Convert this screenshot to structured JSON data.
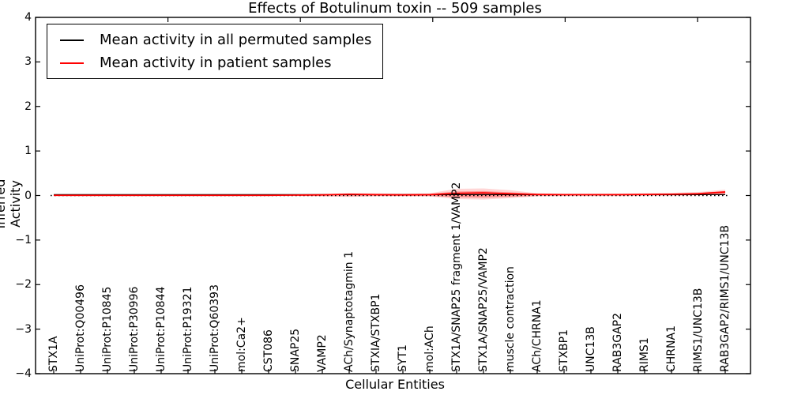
{
  "chart_data": {
    "type": "line",
    "title": "Effects of Botulinum toxin -- 509 samples",
    "xlabel": "Cellular Entities",
    "ylabel": "Inferred Activity",
    "ylim": [
      -4,
      4
    ],
    "xlim": [
      0,
      27
    ],
    "grid": false,
    "legend_position": "upper left",
    "yticks": [
      4,
      3,
      2,
      1,
      0,
      -1,
      -2,
      -3,
      -4
    ],
    "ytick_labels": [
      "4",
      "3",
      "2",
      "1",
      "0",
      "−1",
      "−2",
      "−3",
      "−4"
    ],
    "xticks_top": [
      5,
      10,
      15,
      20,
      25
    ],
    "zero_line": {
      "y": 0,
      "style": "dotted",
      "color": "#000000"
    },
    "categories": [
      "STX1A",
      "UniProt:Q00496",
      "UniProt:P10845",
      "UniProt:P30996",
      "UniProt:P10844",
      "UniProt:P19321",
      "UniProt:Q60393",
      "mol:Ca2+",
      "CST086",
      "SNAP25",
      "VAMP2",
      "ACh/Synaptotagmin 1",
      "STXIA/STXBP1",
      "SYT1",
      "mol:ACh",
      "STX1A/SNAP25 fragment 1/VAMP2",
      "STX1A/SNAP25/VAMP2",
      "muscle contraction",
      "ACh/CHRNA1",
      "STXBP1",
      "UNC13B",
      "RAB3GAP2",
      "RIMS1",
      "CHRNA1",
      "RIMS1/UNC13B",
      "RAB3GAP2/RIMS1/UNC13B"
    ],
    "series": [
      {
        "name": "Mean activity in all permuted samples",
        "color": "#000000",
        "values": [
          0.02,
          0.02,
          0.02,
          0.02,
          0.02,
          0.02,
          0.02,
          0.02,
          0.02,
          0.02,
          0.02,
          0.02,
          0.02,
          0.02,
          0.02,
          0.02,
          0.02,
          0.02,
          0.02,
          0.02,
          0.02,
          0.02,
          0.02,
          0.02,
          0.02,
          0.02
        ]
      },
      {
        "name": "Mean activity in patient samples",
        "color": "#ff0000",
        "values": [
          0.005,
          0.005,
          0.005,
          0.005,
          0.005,
          0.005,
          0.005,
          0.005,
          0.005,
          0.01,
          0.015,
          0.03,
          0.02,
          0.015,
          0.02,
          0.05,
          0.06,
          0.04,
          0.025,
          0.02,
          0.02,
          0.02,
          0.025,
          0.03,
          0.04,
          0.08
        ]
      }
    ],
    "band_outer": {
      "color": "#ff0000",
      "opacity": 0.16,
      "upper": [
        0.015,
        0.02,
        0.02,
        0.02,
        0.02,
        0.02,
        0.02,
        0.02,
        0.02,
        0.025,
        0.03,
        0.05,
        0.05,
        0.04,
        0.05,
        0.15,
        0.16,
        0.12,
        0.05,
        0.04,
        0.04,
        0.045,
        0.05,
        0.06,
        0.08,
        0.13
      ],
      "lower": [
        -0.01,
        -0.015,
        -0.015,
        -0.015,
        -0.015,
        -0.015,
        -0.015,
        -0.015,
        -0.015,
        -0.015,
        -0.02,
        -0.03,
        -0.02,
        -0.02,
        -0.02,
        -0.08,
        -0.09,
        -0.06,
        -0.02,
        -0.015,
        -0.015,
        -0.015,
        -0.01,
        -0.01,
        0.0,
        0.02
      ]
    },
    "band_inner": {
      "color": "#ff0000",
      "opacity": 0.3,
      "upper": [
        0.01,
        0.012,
        0.012,
        0.012,
        0.012,
        0.012,
        0.012,
        0.012,
        0.012,
        0.015,
        0.02,
        0.04,
        0.035,
        0.03,
        0.035,
        0.09,
        0.1,
        0.07,
        0.035,
        0.03,
        0.03,
        0.032,
        0.035,
        0.04,
        0.06,
        0.1
      ],
      "lower": [
        -0.005,
        -0.008,
        -0.008,
        -0.008,
        -0.008,
        -0.008,
        -0.008,
        -0.008,
        -0.008,
        -0.008,
        -0.01,
        -0.015,
        -0.008,
        -0.008,
        -0.01,
        -0.04,
        -0.05,
        -0.03,
        -0.008,
        -0.003,
        -0.003,
        0.0,
        0.003,
        0.008,
        0.015,
        0.04
      ]
    }
  }
}
